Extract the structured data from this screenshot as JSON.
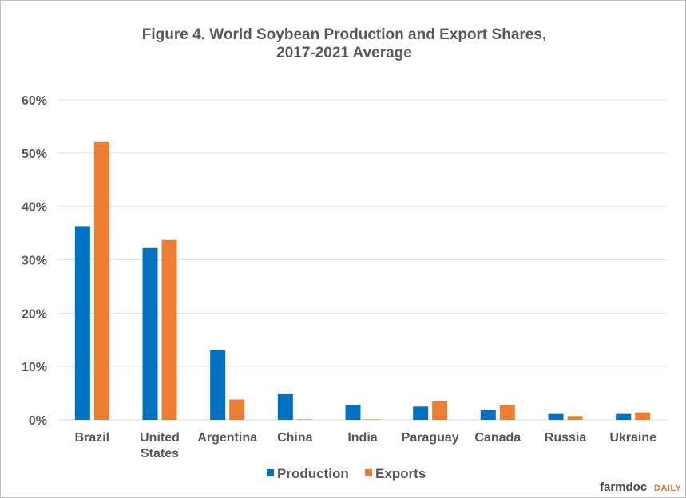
{
  "chart_data": {
    "type": "bar",
    "title": "Figure  4. World Soybean Production  and  Export Shares,",
    "subtitle": "2017-2021  Average",
    "categories": [
      [
        "Brazil"
      ],
      [
        "United",
        "States"
      ],
      [
        "Argentina"
      ],
      [
        "China"
      ],
      [
        "India"
      ],
      [
        "Paraguay"
      ],
      [
        "Canada"
      ],
      [
        "Russia"
      ],
      [
        "Ukraine"
      ]
    ],
    "series": [
      {
        "name": "Production",
        "color": "#0070c0",
        "values": [
          36.3,
          32.2,
          13.1,
          4.8,
          2.8,
          2.5,
          1.8,
          1.1,
          1.1
        ]
      },
      {
        "name": "Exports",
        "color": "#ed7d31",
        "values": [
          52.1,
          33.7,
          3.8,
          0.1,
          0.1,
          3.5,
          2.8,
          0.7,
          1.4
        ]
      }
    ],
    "ylim": [
      0,
      60
    ],
    "yticks": [
      "0%",
      "10%",
      "20%",
      "30%",
      "40%",
      "50%",
      "60%"
    ],
    "xlabel": "",
    "ylabel": "",
    "grid": true,
    "legend_position": "bottom"
  },
  "branding": {
    "name": "farmdoc",
    "suffix": "DAILY"
  }
}
